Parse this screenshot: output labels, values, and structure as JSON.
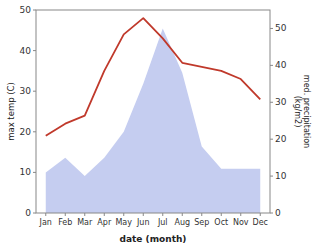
{
  "chart_data": {
    "type": "line",
    "categories": [
      "Jan",
      "Feb",
      "Mar",
      "Apr",
      "May",
      "Jun",
      "Jul",
      "Aug",
      "Sep",
      "Oct",
      "Nov",
      "Dec"
    ],
    "x_label": "date (month)",
    "y_label": "max temp (C)",
    "y2_label": "med. precipitation\n(kg/m2)",
    "ylim": [
      0,
      50
    ],
    "yticks": [
      0,
      10,
      20,
      30,
      40,
      50
    ],
    "y2lim": [
      0,
      55
    ],
    "y2ticks": [
      0,
      10,
      20,
      30,
      40,
      50
    ],
    "series": [
      {
        "type": "area",
        "axis": "y2",
        "color": "#c5cdf0",
        "values": [
          11,
          15,
          10,
          15,
          22,
          35,
          50,
          38,
          18,
          12,
          12,
          12
        ]
      },
      {
        "type": "line",
        "color": "#c0392b",
        "values": [
          19,
          22,
          24,
          35,
          44,
          48,
          43,
          37,
          36,
          35,
          33,
          28
        ]
      }
    ]
  }
}
